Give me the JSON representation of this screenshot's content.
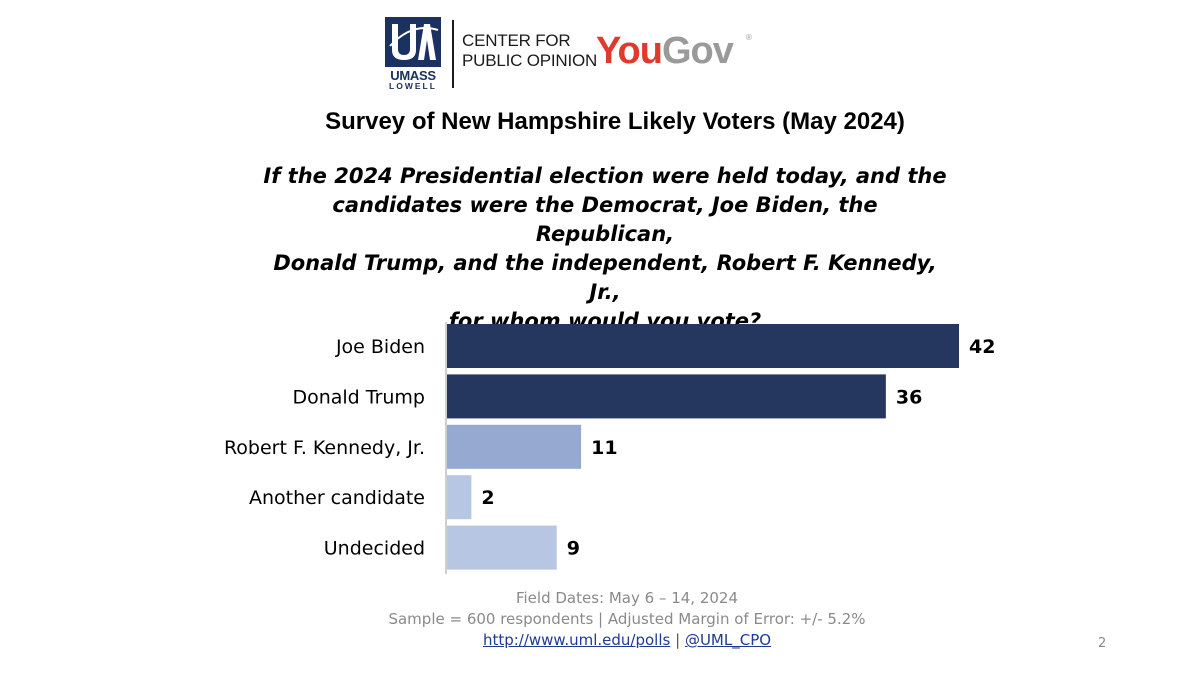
{
  "header": {
    "umass": "UMASS",
    "lowell": "LOWELL",
    "cpo_line1": "CENTER FOR",
    "cpo_line2": "PUBLIC OPINION",
    "yougov_you": "You",
    "yougov_gov": "Gov",
    "yougov_reg": "®"
  },
  "title": "Survey of New Hampshire Likely Voters (May 2024)",
  "question_lines": [
    "If the 2024 Presidential election were held today, and the",
    "candidates were the Democrat, Joe Biden, the Republican,",
    "Donald Trump, and the independent, Robert F. Kennedy, Jr.,",
    "for whom would you vote?"
  ],
  "colors": {
    "dark": "#25375f",
    "medium": "#95a9d1",
    "light": "#b7c6e3"
  },
  "chart_data": {
    "type": "bar",
    "orientation": "horizontal",
    "categories": [
      "Joe Biden",
      "Donald Trump",
      "Robert F. Kennedy, Jr.",
      "Another candidate",
      "Undecided"
    ],
    "values": [
      42,
      36,
      11,
      2,
      9
    ],
    "bar_colors": [
      "#25375f",
      "#25375f",
      "#95a9d1",
      "#b7c6e3",
      "#b7c6e3"
    ],
    "xlim": [
      0,
      45
    ],
    "grid": false,
    "legend": "none"
  },
  "footer": {
    "field_dates": "Field Dates: May 6 – 14, 2024",
    "sample": "Sample = 600 respondents | Adjusted Margin of Error: +/- 5.2%",
    "link1": "http://www.uml.edu/polls",
    "separator": "|",
    "link2": "@UML_CPO"
  },
  "page_number": "2"
}
